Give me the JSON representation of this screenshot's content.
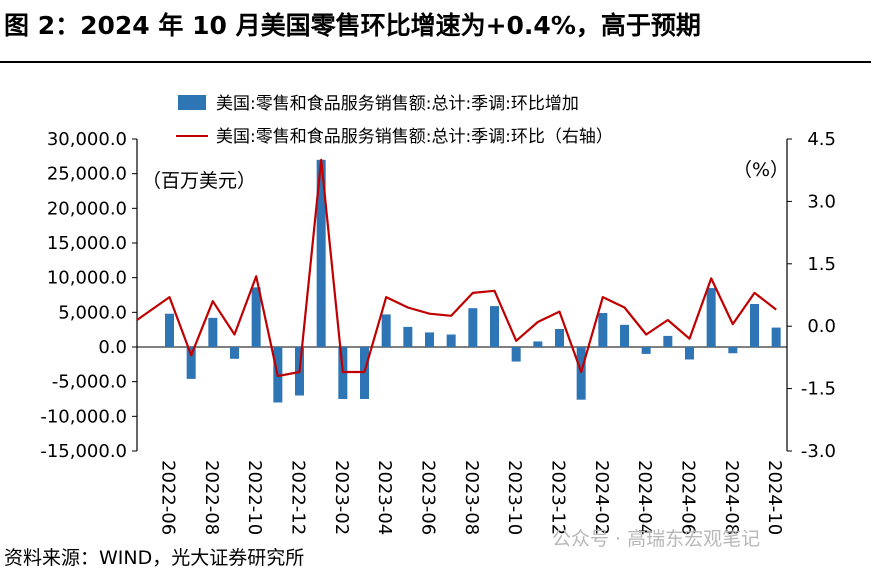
{
  "title": "图 2：2024 年 10 月美国零售环比增速为+0.4%，高于预期",
  "source": "资料来源：WIND，光大证券研究所",
  "watermark": "公众号 · 高瑞东宏观笔记",
  "chart_data": {
    "type": "bar+line",
    "left_unit": "（百万美元）",
    "right_unit": "（%）",
    "colors": {
      "bar": "#2e75b6",
      "line": "#c00000"
    },
    "y_left": {
      "min": -15000,
      "max": 30000,
      "ticks": [
        "30,000.0",
        "25,000.0",
        "20,000.0",
        "15,000.0",
        "10,000.0",
        "5,000.0",
        "0.0",
        "-5,000.0",
        "-10,000.0",
        "-15,000.0"
      ]
    },
    "y_right": {
      "min": -3.0,
      "max": 4.5,
      "ticks": [
        "4.5",
        "3.0",
        "1.5",
        "0.0",
        "-1.5",
        "-3.0"
      ]
    },
    "x_tick_labels": [
      "2022-06",
      "2022-08",
      "2022-10",
      "2022-12",
      "2023-02",
      "2023-04",
      "2023-06",
      "2023-08",
      "2023-10",
      "2023-12",
      "2024-02",
      "2024-04",
      "2024-06",
      "2024-08",
      "2024-10"
    ],
    "series": [
      {
        "name": "美国:零售和食品服务销售额:总计:季调:环比增加",
        "kind": "bar",
        "x": [
          "2022-06",
          "2022-07",
          "2022-08",
          "2022-09",
          "2022-10",
          "2022-11",
          "2022-12",
          "2023-01",
          "2023-02",
          "2023-03",
          "2023-04",
          "2023-05",
          "2023-06",
          "2023-07",
          "2023-08",
          "2023-09",
          "2023-10",
          "2023-11",
          "2023-12",
          "2024-01",
          "2024-02",
          "2024-03",
          "2024-04",
          "2024-05",
          "2024-06",
          "2024-07",
          "2024-08",
          "2024-09",
          "2024-10"
        ],
        "values": [
          4800,
          -4600,
          4200,
          -1700,
          8600,
          -8000,
          -7000,
          27000,
          -7500,
          -7500,
          4700,
          2900,
          2100,
          1800,
          5600,
          5900,
          -2100,
          800,
          2600,
          -7600,
          4900,
          3200,
          -1000,
          1600,
          -1800,
          8500,
          -900,
          6200,
          2800
        ]
      },
      {
        "name": "美国:零售和食品服务销售额:总计:季调:环比（右轴）",
        "kind": "line",
        "x": [
          "2022-05",
          "2022-06",
          "2022-07",
          "2022-08",
          "2022-09",
          "2022-10",
          "2022-11",
          "2022-12",
          "2023-01",
          "2023-02",
          "2023-03",
          "2023-04",
          "2023-05",
          "2023-06",
          "2023-07",
          "2023-08",
          "2023-09",
          "2023-10",
          "2023-11",
          "2023-12",
          "2024-01",
          "2024-02",
          "2024-03",
          "2024-04",
          "2024-05",
          "2024-06",
          "2024-07",
          "2024-08",
          "2024-09",
          "2024-10"
        ],
        "values": [
          0.15,
          0.7,
          -0.7,
          0.6,
          -0.2,
          1.2,
          -1.2,
          -1.1,
          4.0,
          -1.1,
          -1.1,
          0.7,
          0.45,
          0.3,
          0.25,
          0.8,
          0.85,
          -0.35,
          0.1,
          0.35,
          -1.1,
          0.7,
          0.45,
          -0.2,
          0.15,
          -0.3,
          1.15,
          0.05,
          0.8,
          0.4
        ]
      }
    ]
  }
}
